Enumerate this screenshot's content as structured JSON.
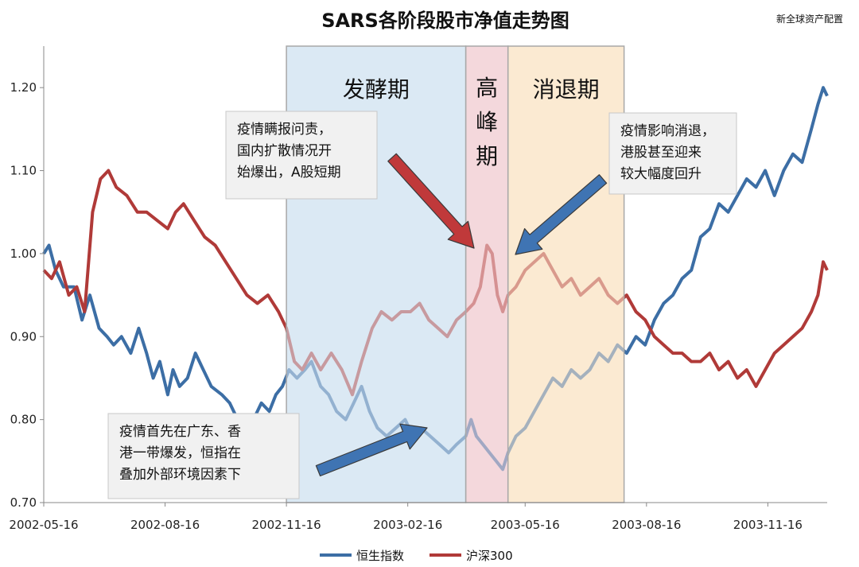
{
  "chart_data": {
    "type": "line",
    "title": "SARS各阶段股市净值走势图",
    "source": "新全球资产配置",
    "xlabel": "",
    "ylabel": "",
    "ylim": [
      0.7,
      1.25
    ],
    "yticks": [
      "0.70",
      "0.80",
      "0.90",
      "1.00",
      "1.10",
      "1.20"
    ],
    "xticks": [
      "2002-05-16",
      "2002-08-16",
      "2002-11-16",
      "2003-02-16",
      "2003-05-16",
      "2003-08-16",
      "2003-11-16"
    ],
    "xlim": [
      "2002-05-16",
      "2003-12-31"
    ],
    "grid": false,
    "legend_position": "bottom",
    "phases": [
      {
        "label": "发酵期",
        "start": "2002-11-16",
        "end": "2003-04-01",
        "color": "#dbe9f4"
      },
      {
        "label": "高峰期",
        "start": "2003-04-01",
        "end": "2003-05-03",
        "color": "#f4d8dc"
      },
      {
        "label": "消退期",
        "start": "2003-05-03",
        "end": "2003-07-30",
        "color": "#fbead2"
      }
    ],
    "annotations": [
      {
        "lines": [
          "疫情瞒报问责，",
          "国内扩散情况开",
          "始爆出，A股短期"
        ]
      },
      {
        "lines": [
          "疫情影响消退，",
          "港股甚至迎来",
          "较大幅度回升"
        ]
      },
      {
        "lines": [
          "疫情首先在广东、香",
          "港一带爆发，恒指在",
          "叠加外部环境因素下"
        ]
      }
    ],
    "series": [
      {
        "name": "恒生指数",
        "color": "#3c6ea5",
        "points": [
          [
            "2002-05-16",
            1.0
          ],
          [
            "2002-05-20",
            1.01
          ],
          [
            "2002-05-25",
            0.98
          ],
          [
            "2002-05-31",
            0.96
          ],
          [
            "2002-06-08",
            0.96
          ],
          [
            "2002-06-14",
            0.92
          ],
          [
            "2002-06-20",
            0.95
          ],
          [
            "2002-06-27",
            0.91
          ],
          [
            "2002-07-03",
            0.9
          ],
          [
            "2002-07-08",
            0.89
          ],
          [
            "2002-07-14",
            0.9
          ],
          [
            "2002-07-21",
            0.88
          ],
          [
            "2002-07-27",
            0.91
          ],
          [
            "2002-08-02",
            0.88
          ],
          [
            "2002-08-07",
            0.85
          ],
          [
            "2002-08-12",
            0.87
          ],
          [
            "2002-08-18",
            0.83
          ],
          [
            "2002-08-22",
            0.86
          ],
          [
            "2002-08-27",
            0.84
          ],
          [
            "2002-09-02",
            0.85
          ],
          [
            "2002-09-08",
            0.88
          ],
          [
            "2002-09-14",
            0.86
          ],
          [
            "2002-09-20",
            0.84
          ],
          [
            "2002-09-28",
            0.83
          ],
          [
            "2002-10-04",
            0.82
          ],
          [
            "2002-10-10",
            0.8
          ],
          [
            "2002-10-16",
            0.78
          ],
          [
            "2002-10-22",
            0.8
          ],
          [
            "2002-10-28",
            0.82
          ],
          [
            "2002-11-03",
            0.81
          ],
          [
            "2002-11-08",
            0.83
          ],
          [
            "2002-11-13",
            0.84
          ],
          [
            "2002-11-18",
            0.86
          ],
          [
            "2002-11-24",
            0.85
          ],
          [
            "2002-11-30",
            0.86
          ],
          [
            "2002-12-05",
            0.87
          ],
          [
            "2002-12-12",
            0.84
          ],
          [
            "2002-12-18",
            0.83
          ],
          [
            "2002-12-24",
            0.81
          ],
          [
            "2002-12-31",
            0.8
          ],
          [
            "2003-01-06",
            0.82
          ],
          [
            "2003-01-12",
            0.84
          ],
          [
            "2003-01-18",
            0.81
          ],
          [
            "2003-01-24",
            0.79
          ],
          [
            "2003-01-31",
            0.78
          ],
          [
            "2003-02-07",
            0.79
          ],
          [
            "2003-02-14",
            0.8
          ],
          [
            "2003-02-20",
            0.78
          ],
          [
            "2003-02-26",
            0.79
          ],
          [
            "2003-03-05",
            0.78
          ],
          [
            "2003-03-12",
            0.77
          ],
          [
            "2003-03-19",
            0.76
          ],
          [
            "2003-03-25",
            0.77
          ],
          [
            "2003-04-01",
            0.78
          ],
          [
            "2003-04-05",
            0.8
          ],
          [
            "2003-04-09",
            0.78
          ],
          [
            "2003-04-14",
            0.77
          ],
          [
            "2003-04-19",
            0.76
          ],
          [
            "2003-04-24",
            0.75
          ],
          [
            "2003-04-29",
            0.74
          ],
          [
            "2003-05-03",
            0.76
          ],
          [
            "2003-05-09",
            0.78
          ],
          [
            "2003-05-16",
            0.79
          ],
          [
            "2003-05-23",
            0.81
          ],
          [
            "2003-05-30",
            0.83
          ],
          [
            "2003-06-06",
            0.85
          ],
          [
            "2003-06-13",
            0.84
          ],
          [
            "2003-06-20",
            0.86
          ],
          [
            "2003-06-27",
            0.85
          ],
          [
            "2003-07-04",
            0.86
          ],
          [
            "2003-07-11",
            0.88
          ],
          [
            "2003-07-18",
            0.87
          ],
          [
            "2003-07-25",
            0.89
          ],
          [
            "2003-08-01",
            0.88
          ],
          [
            "2003-08-08",
            0.9
          ],
          [
            "2003-08-15",
            0.89
          ],
          [
            "2003-08-22",
            0.92
          ],
          [
            "2003-08-29",
            0.94
          ],
          [
            "2003-09-05",
            0.95
          ],
          [
            "2003-09-12",
            0.97
          ],
          [
            "2003-09-19",
            0.98
          ],
          [
            "2003-09-26",
            1.02
          ],
          [
            "2003-10-03",
            1.03
          ],
          [
            "2003-10-10",
            1.06
          ],
          [
            "2003-10-17",
            1.05
          ],
          [
            "2003-10-24",
            1.07
          ],
          [
            "2003-10-31",
            1.09
          ],
          [
            "2003-11-07",
            1.08
          ],
          [
            "2003-11-14",
            1.1
          ],
          [
            "2003-11-21",
            1.07
          ],
          [
            "2003-11-28",
            1.1
          ],
          [
            "2003-12-05",
            1.12
          ],
          [
            "2003-12-12",
            1.11
          ],
          [
            "2003-12-19",
            1.15
          ],
          [
            "2003-12-24",
            1.18
          ],
          [
            "2003-12-28",
            1.2
          ],
          [
            "2003-12-31",
            1.19
          ]
        ]
      },
      {
        "name": "沪深300",
        "color": "#b03a38",
        "points": [
          [
            "2002-05-16",
            0.98
          ],
          [
            "2002-05-22",
            0.97
          ],
          [
            "2002-05-28",
            0.99
          ],
          [
            "2002-06-04",
            0.95
          ],
          [
            "2002-06-10",
            0.96
          ],
          [
            "2002-06-16",
            0.93
          ],
          [
            "2002-06-22",
            1.05
          ],
          [
            "2002-06-28",
            1.09
          ],
          [
            "2002-07-04",
            1.1
          ],
          [
            "2002-07-10",
            1.08
          ],
          [
            "2002-07-18",
            1.07
          ],
          [
            "2002-07-26",
            1.05
          ],
          [
            "2002-08-02",
            1.05
          ],
          [
            "2002-08-10",
            1.04
          ],
          [
            "2002-08-18",
            1.03
          ],
          [
            "2002-08-24",
            1.05
          ],
          [
            "2002-08-30",
            1.06
          ],
          [
            "2002-09-07",
            1.04
          ],
          [
            "2002-09-15",
            1.02
          ],
          [
            "2002-09-23",
            1.01
          ],
          [
            "2002-10-01",
            0.99
          ],
          [
            "2002-10-09",
            0.97
          ],
          [
            "2002-10-17",
            0.95
          ],
          [
            "2002-10-25",
            0.94
          ],
          [
            "2002-11-02",
            0.95
          ],
          [
            "2002-11-10",
            0.93
          ],
          [
            "2002-11-16",
            0.91
          ],
          [
            "2002-11-22",
            0.87
          ],
          [
            "2002-11-28",
            0.86
          ],
          [
            "2002-12-05",
            0.88
          ],
          [
            "2002-12-12",
            0.86
          ],
          [
            "2002-12-20",
            0.88
          ],
          [
            "2002-12-28",
            0.86
          ],
          [
            "2003-01-05",
            0.83
          ],
          [
            "2003-01-12",
            0.87
          ],
          [
            "2003-01-20",
            0.91
          ],
          [
            "2003-01-27",
            0.93
          ],
          [
            "2003-02-04",
            0.92
          ],
          [
            "2003-02-11",
            0.93
          ],
          [
            "2003-02-18",
            0.93
          ],
          [
            "2003-02-25",
            0.94
          ],
          [
            "2003-03-04",
            0.92
          ],
          [
            "2003-03-11",
            0.91
          ],
          [
            "2003-03-18",
            0.9
          ],
          [
            "2003-03-25",
            0.92
          ],
          [
            "2003-04-01",
            0.93
          ],
          [
            "2003-04-07",
            0.94
          ],
          [
            "2003-04-12",
            0.96
          ],
          [
            "2003-04-17",
            1.01
          ],
          [
            "2003-04-21",
            1.0
          ],
          [
            "2003-04-25",
            0.95
          ],
          [
            "2003-04-29",
            0.93
          ],
          [
            "2003-05-03",
            0.95
          ],
          [
            "2003-05-09",
            0.96
          ],
          [
            "2003-05-16",
            0.98
          ],
          [
            "2003-05-23",
            0.99
          ],
          [
            "2003-05-30",
            1.0
          ],
          [
            "2003-06-06",
            0.98
          ],
          [
            "2003-06-13",
            0.96
          ],
          [
            "2003-06-20",
            0.97
          ],
          [
            "2003-06-27",
            0.95
          ],
          [
            "2003-07-04",
            0.96
          ],
          [
            "2003-07-11",
            0.97
          ],
          [
            "2003-07-18",
            0.95
          ],
          [
            "2003-07-25",
            0.94
          ],
          [
            "2003-08-01",
            0.95
          ],
          [
            "2003-08-08",
            0.93
          ],
          [
            "2003-08-15",
            0.92
          ],
          [
            "2003-08-22",
            0.9
          ],
          [
            "2003-08-29",
            0.89
          ],
          [
            "2003-09-05",
            0.88
          ],
          [
            "2003-09-12",
            0.88
          ],
          [
            "2003-09-19",
            0.87
          ],
          [
            "2003-09-26",
            0.87
          ],
          [
            "2003-10-03",
            0.88
          ],
          [
            "2003-10-10",
            0.86
          ],
          [
            "2003-10-17",
            0.87
          ],
          [
            "2003-10-24",
            0.85
          ],
          [
            "2003-10-31",
            0.86
          ],
          [
            "2003-11-07",
            0.84
          ],
          [
            "2003-11-14",
            0.86
          ],
          [
            "2003-11-21",
            0.88
          ],
          [
            "2003-11-28",
            0.89
          ],
          [
            "2003-12-05",
            0.9
          ],
          [
            "2003-12-12",
            0.91
          ],
          [
            "2003-12-19",
            0.93
          ],
          [
            "2003-12-24",
            0.95
          ],
          [
            "2003-12-28",
            0.99
          ],
          [
            "2003-12-31",
            0.98
          ]
        ]
      }
    ]
  }
}
